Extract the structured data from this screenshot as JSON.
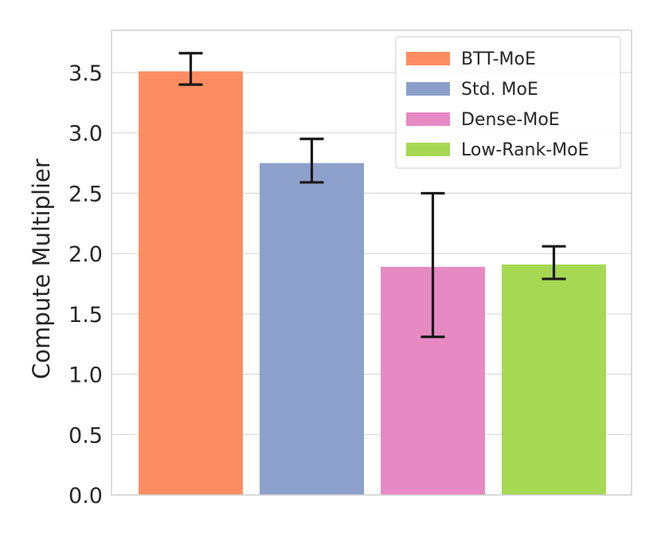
{
  "chart_data": {
    "type": "bar",
    "title": "",
    "xlabel": "",
    "ylabel": "Compute Multiplier",
    "ylim": [
      0,
      3.85
    ],
    "yticks": [
      "0.0",
      "0.5",
      "1.0",
      "1.5",
      "2.0",
      "2.5",
      "3.0",
      "3.5"
    ],
    "grid": true,
    "legend_position": "top-right",
    "series": [
      {
        "name": "BTT-MoE",
        "value": 3.51,
        "err_low": 3.4,
        "err_high": 3.66,
        "color": "#fc8d62"
      },
      {
        "name": "Std. MoE",
        "value": 2.75,
        "err_low": 2.59,
        "err_high": 2.95,
        "color": "#8da0cb"
      },
      {
        "name": "Dense-MoE",
        "value": 1.89,
        "err_low": 1.31,
        "err_high": 2.5,
        "color": "#e78ac3"
      },
      {
        "name": "Low-Rank-MoE",
        "value": 1.91,
        "err_low": 1.79,
        "err_high": 2.06,
        "color": "#a6d854"
      }
    ]
  }
}
